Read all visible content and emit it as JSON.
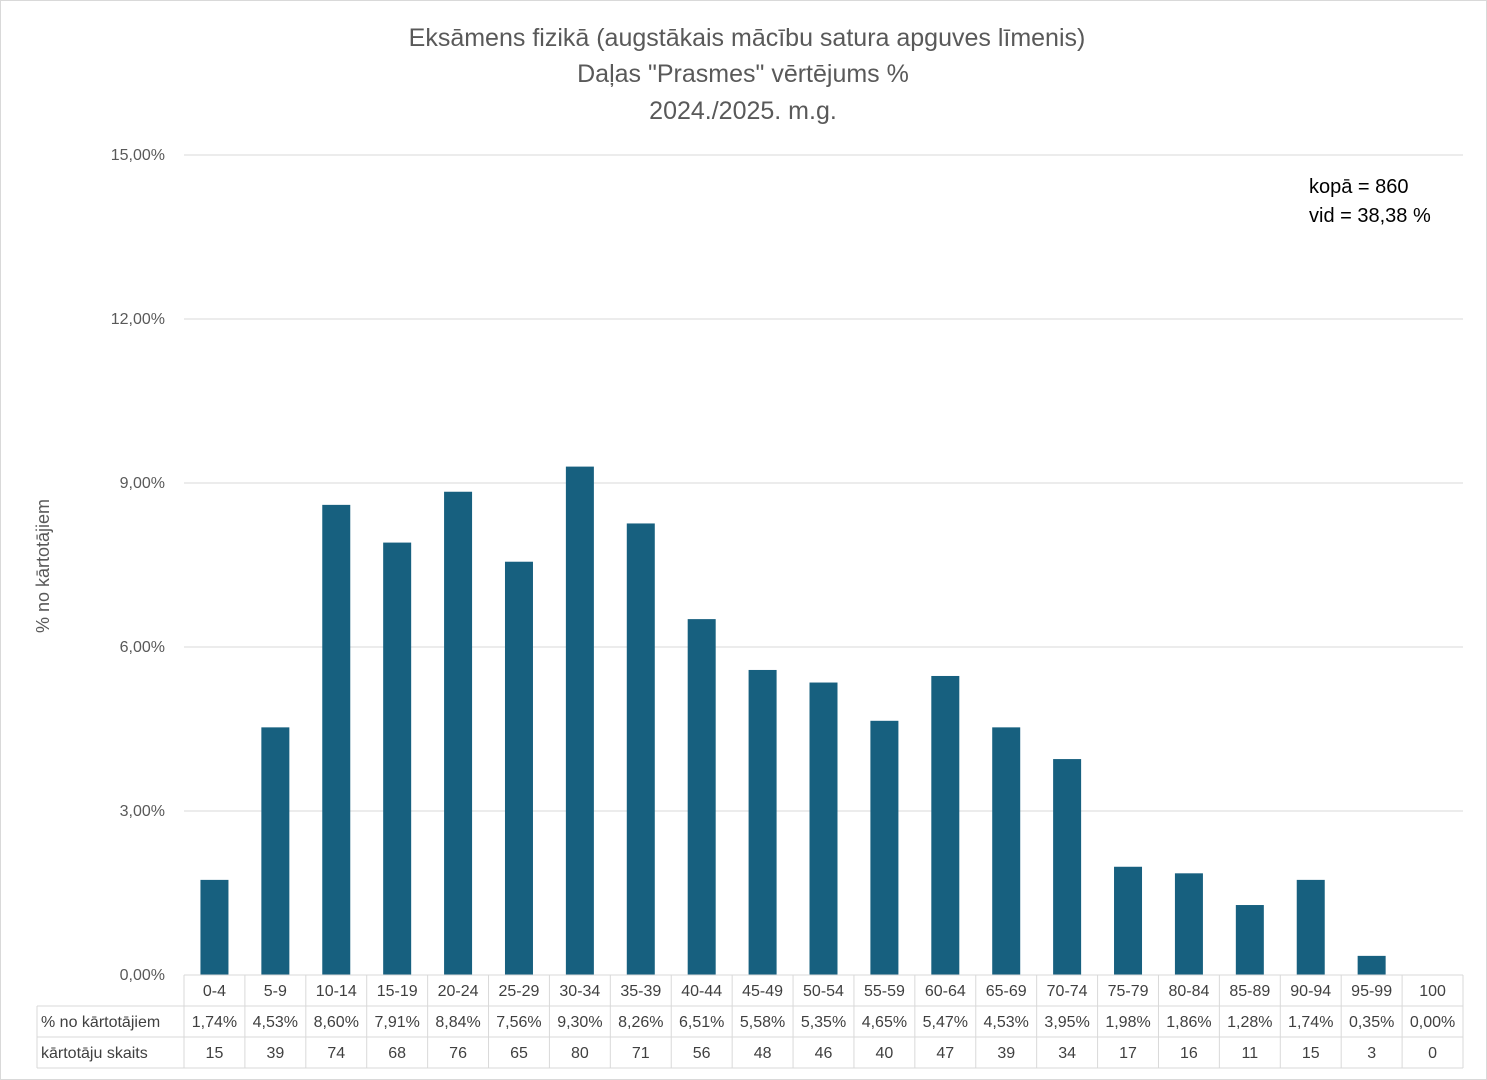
{
  "chart_data": {
    "type": "bar",
    "title": [
      "Eksāmens fizikā (augstākais mācību satura apguves līmenis)",
      "Daļas \"Prasmes\" vērtējums %",
      "2024./2025. m.g."
    ],
    "ylabel": "% no kārtotājiem",
    "ylim": [
      0,
      15
    ],
    "yticks": [
      "0,00%",
      "3,00%",
      "6,00%",
      "9,00%",
      "12,00%",
      "15,00%"
    ],
    "yticks_values": [
      0,
      3,
      6,
      9,
      12,
      15
    ],
    "grid": true,
    "bar_color": "#17607f",
    "categories": [
      "0-4",
      "5-9",
      "10-14",
      "15-19",
      "20-24",
      "25-29",
      "30-34",
      "35-39",
      "40-44",
      "45-49",
      "50-54",
      "55-59",
      "60-64",
      "65-69",
      "70-74",
      "75-79",
      "80-84",
      "85-89",
      "90-94",
      "95-99",
      "100"
    ],
    "values": [
      1.74,
      4.53,
      8.6,
      7.91,
      8.84,
      7.56,
      9.3,
      8.26,
      6.51,
      5.58,
      5.35,
      4.65,
      5.47,
      4.53,
      3.95,
      1.98,
      1.86,
      1.28,
      1.74,
      0.35,
      0.0
    ],
    "table": {
      "rows": [
        {
          "label": "% no kārtotājiem",
          "cells": [
            "1,74%",
            "4,53%",
            "8,60%",
            "7,91%",
            "8,84%",
            "7,56%",
            "9,30%",
            "8,26%",
            "6,51%",
            "5,58%",
            "5,35%",
            "4,65%",
            "5,47%",
            "4,53%",
            "3,95%",
            "1,98%",
            "1,86%",
            "1,28%",
            "1,74%",
            "0,35%",
            "0,00%"
          ]
        },
        {
          "label": "kārtotāju skaits",
          "cells": [
            "15",
            "39",
            "74",
            "68",
            "76",
            "65",
            "80",
            "71",
            "56",
            "48",
            "46",
            "40",
            "47",
            "39",
            "34",
            "17",
            "16",
            "11",
            "15",
            "3",
            "0"
          ]
        }
      ]
    },
    "annotation": [
      "kopā = 860",
      "vid = 38,38 %"
    ]
  }
}
